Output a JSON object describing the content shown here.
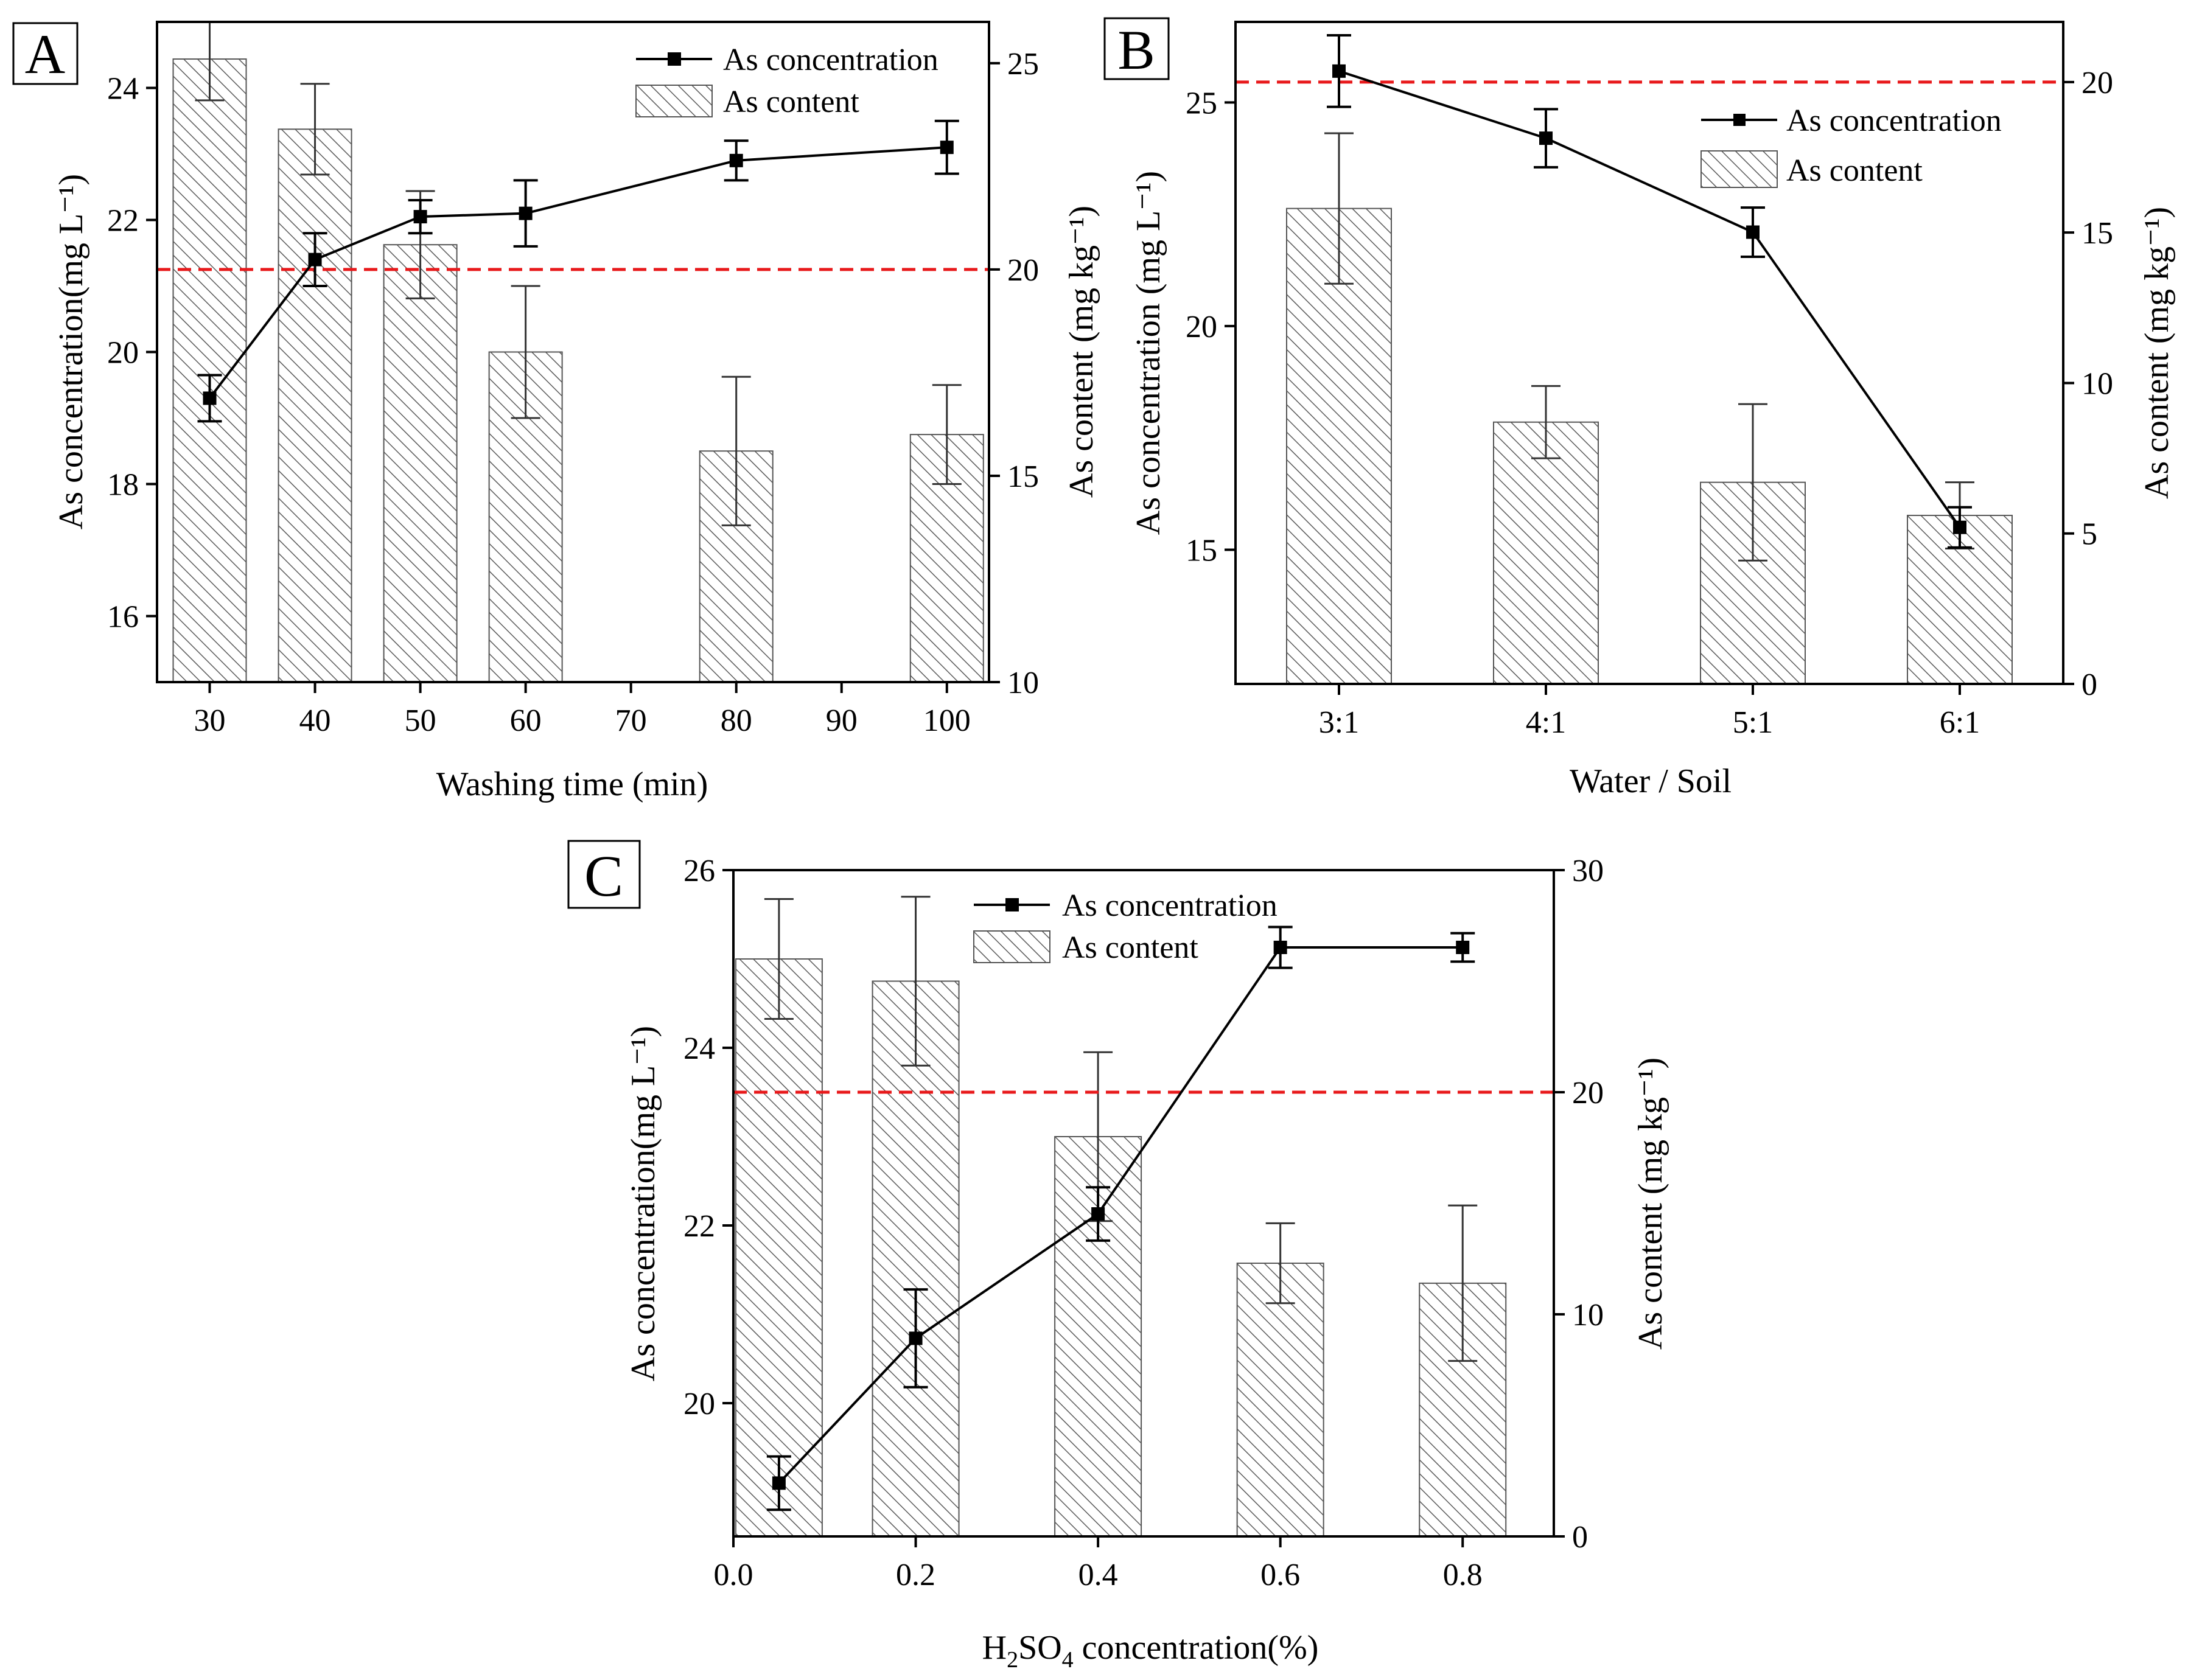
{
  "chart_data": [
    {
      "panel": "A",
      "type": "bar+line",
      "xlabel": "Washing time (min)",
      "ylabel_left": "As concentration(mg L⁻¹)",
      "ylabel_right": "As content (mg kg⁻¹)",
      "x_ticks": [
        30,
        40,
        50,
        60,
        70,
        80,
        90,
        100
      ],
      "xlim": [
        25,
        104
      ],
      "ylim_left": [
        15,
        25
      ],
      "y_ticks_left": [
        16,
        18,
        20,
        22,
        24
      ],
      "ylim_right": [
        10,
        26
      ],
      "y_ticks_right": [
        10,
        15,
        20,
        25
      ],
      "legend": {
        "line": "As concentration",
        "bar": "As content",
        "position": "top-right"
      },
      "threshold_right": 20,
      "bars": {
        "name": "As content",
        "x": [
          30,
          40,
          50,
          60,
          80,
          100
        ],
        "values": [
          25.1,
          23.4,
          20.6,
          18.0,
          15.6,
          16.0
        ],
        "errors": [
          1.0,
          1.1,
          1.3,
          1.6,
          1.8,
          1.2
        ]
      },
      "line": {
        "name": "As concentration",
        "x": [
          30,
          40,
          50,
          60,
          80,
          100
        ],
        "values": [
          19.3,
          21.4,
          22.05,
          22.1,
          22.9,
          23.1
        ],
        "errors": [
          0.35,
          0.4,
          0.25,
          0.5,
          0.3,
          0.4
        ]
      }
    },
    {
      "panel": "B",
      "type": "bar+line",
      "xlabel": "Water / Soil",
      "ylabel_left": "As concentration (mg L⁻¹)",
      "ylabel_right": "As content (mg kg⁻¹)",
      "categories": [
        "3:1",
        "4:1",
        "5:1",
        "6:1"
      ],
      "ylim_left": [
        12,
        26.8
      ],
      "y_ticks_left": [
        15,
        20,
        25
      ],
      "ylim_right": [
        0,
        22
      ],
      "y_ticks_right": [
        0,
        5,
        10,
        15,
        20
      ],
      "legend": {
        "line": "As concentration",
        "bar": "As content",
        "position": "top-right"
      },
      "threshold_right": 20,
      "bars": {
        "name": "As content",
        "values": [
          15.8,
          8.7,
          6.7,
          5.6
        ],
        "errors": [
          2.5,
          1.2,
          2.6,
          1.1
        ]
      },
      "line": {
        "name": "As concentration",
        "values": [
          25.7,
          24.2,
          22.1,
          15.5
        ],
        "errors": [
          0.8,
          0.65,
          0.55,
          0.45
        ]
      }
    },
    {
      "panel": "C",
      "type": "bar+line",
      "xlabel_main": "H",
      "xlabel_sub1": "2",
      "xlabel_mid": "SO",
      "xlabel_sub2": "4",
      "xlabel_tail": " concentration(%)",
      "ylabel_left": "As concentration(mg L⁻¹)",
      "ylabel_right": "As content (mg kg⁻¹)",
      "x_ticks": [
        "0.0",
        "0.2",
        "0.4",
        "0.6",
        "0.8"
      ],
      "xlim": [
        0,
        0.9
      ],
      "ylim_left": [
        18.5,
        26
      ],
      "y_ticks_left": [
        20,
        22,
        24,
        26
      ],
      "ylim_right": [
        0,
        30
      ],
      "y_ticks_right": [
        0,
        10,
        20,
        30
      ],
      "legend": {
        "line": "As concentration",
        "bar": "As content",
        "position": "top-center"
      },
      "threshold_right": 20,
      "bars": {
        "name": "As content",
        "x": [
          0.05,
          0.2,
          0.4,
          0.6,
          0.8
        ],
        "values": [
          26.0,
          25.0,
          18.0,
          12.3,
          11.4
        ],
        "errors": [
          2.7,
          3.8,
          3.8,
          1.8,
          3.5
        ]
      },
      "line": {
        "name": "As concentration",
        "x": [
          0.05,
          0.2,
          0.4,
          0.6,
          0.8
        ],
        "values": [
          19.1,
          20.73,
          22.13,
          25.13,
          25.13
        ],
        "errors": [
          0.3,
          0.55,
          0.3,
          0.23,
          0.16
        ]
      }
    }
  ],
  "panel_labels": [
    "A",
    "B",
    "C"
  ]
}
